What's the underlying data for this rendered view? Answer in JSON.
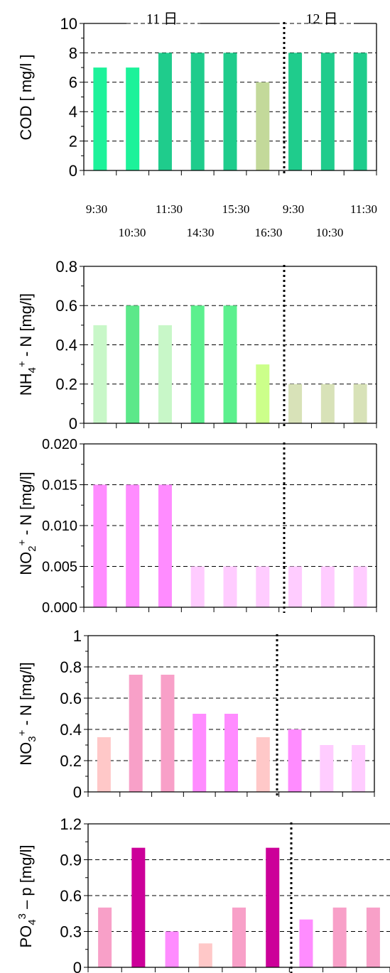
{
  "chart_data": [
    {
      "type": "bar",
      "ylabel": "COD [ mg/l ]",
      "ylim": [
        0,
        10
      ],
      "yticks": [
        "0",
        "2",
        "4",
        "6",
        "8",
        "10"
      ],
      "grid": "horizontal-dashed",
      "day_labels": [
        "11 日",
        "12 日"
      ],
      "time_labels": [
        "9:30",
        "10:30",
        "11:30",
        "14:30",
        "15:30",
        "16:30",
        "9:30",
        "10:30",
        "11:30"
      ],
      "values": [
        7,
        7,
        8,
        8,
        8,
        6,
        8,
        8,
        8
      ],
      "colors": [
        "#1DF29A",
        "#1DF29A",
        "#1FCC8C",
        "#1FCC8C",
        "#1FCC8C",
        "#C3D99A",
        "#1FCC8C",
        "#1FCC8C",
        "#1FCC8C"
      ]
    },
    {
      "type": "bar",
      "ylabel": "NH4+ - N [mg/l]",
      "ylim": [
        0,
        0.8
      ],
      "yticks": [
        "0",
        "0.2",
        "0.4",
        "0.6",
        "0.8"
      ],
      "grid": "horizontal-dashed",
      "values": [
        0.5,
        0.6,
        0.5,
        0.6,
        0.6,
        0.3,
        0.2,
        0.2,
        0.2
      ],
      "colors": [
        "#C8F7C8",
        "#5CE88A",
        "#C8F7C8",
        "#5CF08E",
        "#5CF08E",
        "#CCFF8A",
        "#D8E2B8",
        "#D8E2B8",
        "#D8E2B8"
      ]
    },
    {
      "type": "bar",
      "ylabel": "NO2+ - N [mg/l]",
      "ylim": [
        0,
        0.02
      ],
      "yticks": [
        "0.000",
        "0.005",
        "0.010",
        "0.015",
        "0.020"
      ],
      "grid": "horizontal-dashed",
      "values": [
        0.015,
        0.015,
        0.015,
        0.005,
        0.005,
        0.005,
        0.005,
        0.005,
        0.005
      ],
      "colors": [
        "#FF8CFF",
        "#FF8CFF",
        "#FF8CFF",
        "#FFCCFF",
        "#FFCCFF",
        "#FFCCFF",
        "#FFCCFF",
        "#FFCCFF",
        "#FFCCFF"
      ]
    },
    {
      "type": "bar",
      "ylabel": "NO3+ - N [mg/l]",
      "ylim": [
        0,
        1
      ],
      "yticks": [
        "0",
        "0.2",
        "0.4",
        "0.6",
        "0.8",
        "1"
      ],
      "grid": "horizontal-dashed",
      "values": [
        0.35,
        0.75,
        0.75,
        0.5,
        0.5,
        0.35,
        0.4,
        0.3,
        0.3
      ],
      "colors": [
        "#FFC8C8",
        "#F8A0C8",
        "#F8A0C8",
        "#FF8CFF",
        "#FF8CFF",
        "#FFC8C8",
        "#FF8CFF",
        "#FFCCFF",
        "#FFCCFF"
      ]
    },
    {
      "type": "bar",
      "ylabel": "PO43 – p [mg/l]",
      "ylim": [
        0,
        1.2
      ],
      "yticks": [
        "0",
        "0.3",
        "0.6",
        "0.9",
        "1.2"
      ],
      "grid": "horizontal-dashed",
      "values": [
        0.5,
        1.0,
        0.3,
        0.2,
        0.5,
        1.0,
        0.4,
        0.5,
        0.5
      ],
      "colors": [
        "#F8A0C8",
        "#CC0099",
        "#FF8CFF",
        "#FFC8C8",
        "#F8A0C8",
        "#CC0099",
        "#FF8CFF",
        "#F8A0C8",
        "#F8A0C8"
      ]
    }
  ]
}
